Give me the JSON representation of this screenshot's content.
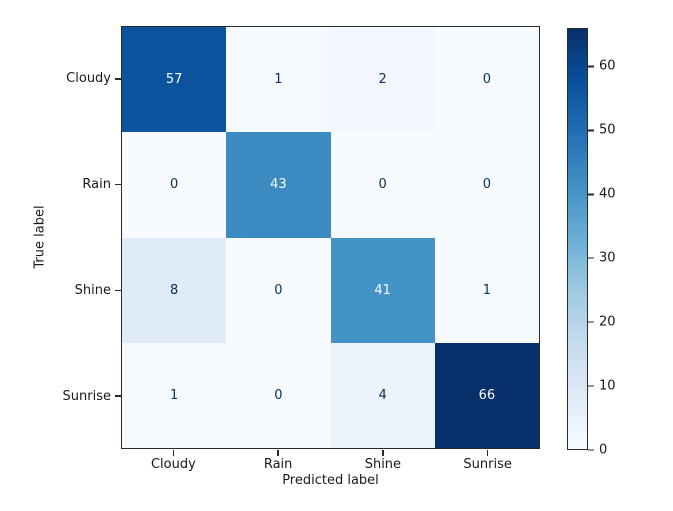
{
  "figure": {
    "background_color": "#ffffff",
    "axes_border_color": "#2a2a2a",
    "tick_color": "#2a2a2a",
    "text_color": "#1a1a1a"
  },
  "chart_data": {
    "type": "heatmap",
    "subtype": "confusion-matrix",
    "title": "",
    "xlabel": "Predicted label",
    "ylabel": "True label",
    "x_categories": [
      "Cloudy",
      "Rain",
      "Shine",
      "Sunrise"
    ],
    "y_categories": [
      "Cloudy",
      "Rain",
      "Shine",
      "Sunrise"
    ],
    "matrix": [
      [
        57,
        1,
        2,
        0
      ],
      [
        0,
        43,
        0,
        0
      ],
      [
        8,
        0,
        41,
        1
      ],
      [
        1,
        0,
        4,
        66
      ]
    ],
    "vmin": 0,
    "vmax": 66,
    "colormap": "Blues",
    "colormap_stops": [
      "#f7fbff",
      "#deebf7",
      "#c6dbef",
      "#9ecae1",
      "#6baed6",
      "#4292c6",
      "#2171b5",
      "#08519c",
      "#08306b"
    ],
    "colorbar_ticks": [
      0,
      10,
      20,
      30,
      40,
      50,
      60
    ],
    "colorbar_position": "right",
    "grid": false,
    "cell_colors": [
      [
        "#0a549e",
        "#f4f9fe",
        "#f1f7fd",
        "#f7fbff"
      ],
      [
        "#f7fbff",
        "#3b8bc2",
        "#f7fbff",
        "#f7fbff"
      ],
      [
        "#dfebf7",
        "#f7fbff",
        "#4393c6",
        "#f4f9fe"
      ],
      [
        "#f4f9fe",
        "#f7fbff",
        "#ebf3fb",
        "#08306b"
      ]
    ],
    "cell_text_colors": [
      [
        "#f7fbff",
        "#08306b",
        "#08306b",
        "#08306b"
      ],
      [
        "#08306b",
        "#f7fbff",
        "#08306b",
        "#08306b"
      ],
      [
        "#08306b",
        "#08306b",
        "#f7fbff",
        "#08306b"
      ],
      [
        "#08306b",
        "#08306b",
        "#08306b",
        "#f7fbff"
      ]
    ]
  }
}
